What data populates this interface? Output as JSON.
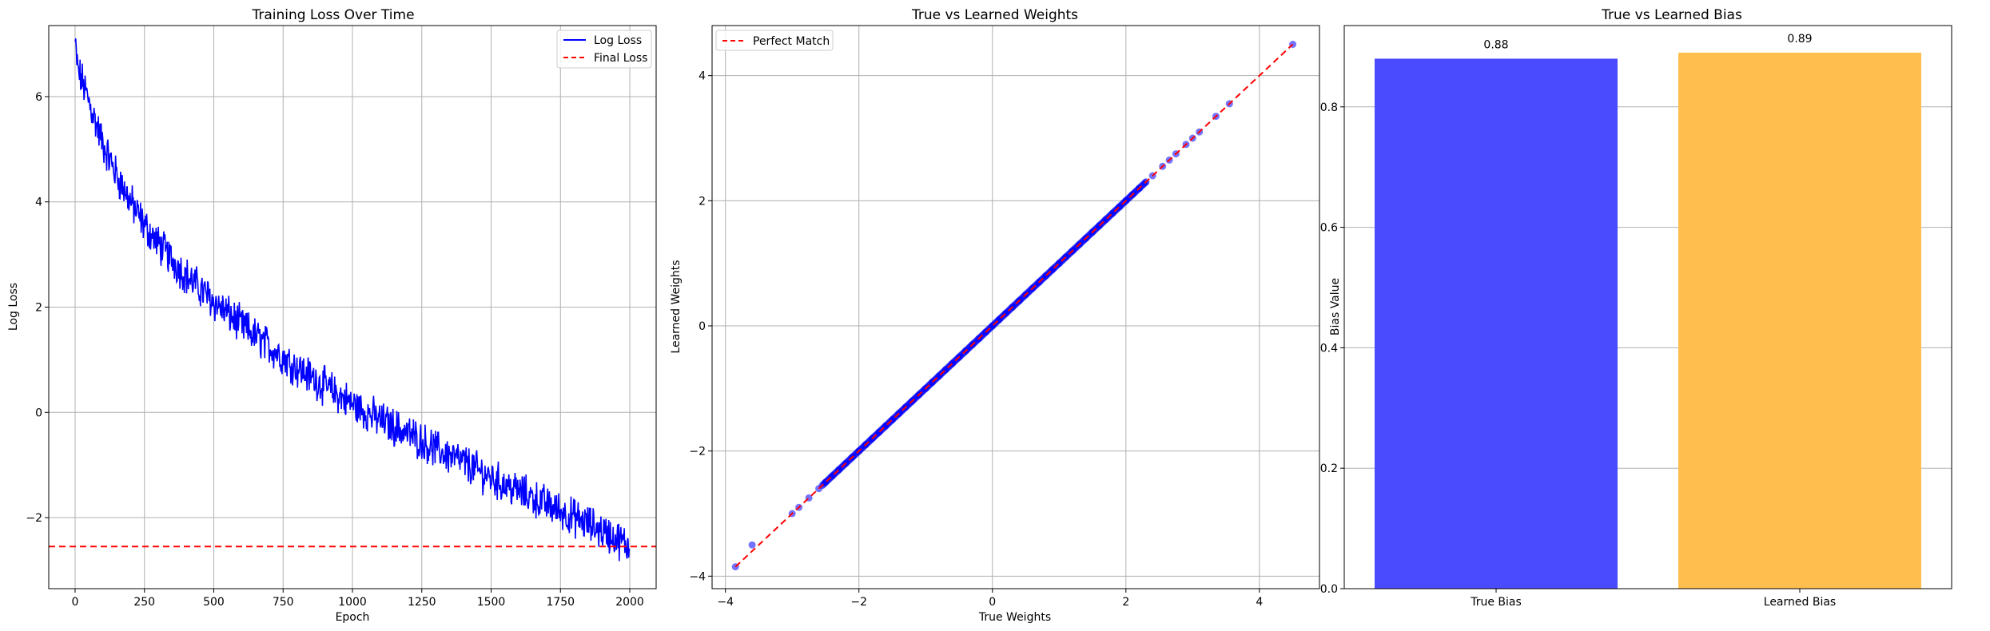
{
  "chart_data": [
    {
      "type": "line",
      "title": "Training Loss Over Time",
      "xlabel": "Epoch",
      "ylabel": "Log Loss",
      "xlim": [
        -95,
        2095
      ],
      "ylim": [
        -3.35,
        7.35
      ],
      "xticks": [
        "0",
        "250",
        "500",
        "750",
        "1000",
        "1250",
        "1500",
        "1750",
        "2000"
      ],
      "xtick_values": [
        0,
        250,
        500,
        750,
        1000,
        1250,
        1500,
        1750,
        2000
      ],
      "yticks": [
        "−2",
        "0",
        "2",
        "4",
        "6"
      ],
      "ytick_values": [
        -2,
        0,
        2,
        4,
        6
      ],
      "grid": true,
      "legend_position": "top-right",
      "series": [
        {
          "name": "Log Loss",
          "color": "#0000ff",
          "x": [
            0,
            10,
            25,
            50,
            75,
            100,
            150,
            200,
            250,
            300,
            400,
            500,
            600,
            700,
            800,
            900,
            1000,
            1100,
            1200,
            1300,
            1400,
            1500,
            1600,
            1700,
            1800,
            1900,
            2000
          ],
          "y": [
            7.0,
            6.5,
            6.3,
            5.9,
            5.5,
            5.1,
            4.5,
            4.0,
            3.55,
            3.2,
            2.6,
            2.1,
            1.65,
            1.25,
            0.85,
            0.5,
            0.15,
            -0.15,
            -0.4,
            -0.7,
            -0.95,
            -1.25,
            -1.5,
            -1.75,
            -2.0,
            -2.25,
            -2.55
          ]
        },
        {
          "name": "Final Loss",
          "color": "#ff0000",
          "style": "dashed",
          "y": -2.55
        }
      ]
    },
    {
      "type": "scatter",
      "title": "True vs Learned Weights",
      "xlabel": "True Weights",
      "ylabel": "Learned Weights",
      "xlim": [
        -4.2,
        4.9
      ],
      "ylim": [
        -4.2,
        4.8
      ],
      "xticks": [
        "−4",
        "−2",
        "0",
        "2",
        "4"
      ],
      "xtick_values": [
        -4,
        -2,
        0,
        2,
        4
      ],
      "yticks": [
        "−4",
        "−2",
        "0",
        "2",
        "4"
      ],
      "ytick_values": [
        -4,
        -2,
        0,
        2,
        4
      ],
      "grid": true,
      "legend_position": "top-left",
      "points_color": "#0000ff",
      "points_x": [
        -3.85,
        -3.6,
        -3.0,
        -2.9,
        -2.75,
        -2.6,
        -2.5,
        -2.4,
        -2.3,
        -2.2,
        -2.1,
        -2.0,
        -1.9,
        -1.8,
        -1.7,
        -1.6,
        -1.5,
        -1.4,
        -1.3,
        -1.2,
        -1.1,
        -1.0,
        -0.9,
        -0.8,
        -0.7,
        -0.6,
        -0.5,
        -0.4,
        -0.3,
        -0.2,
        -0.1,
        0.0,
        0.1,
        0.2,
        0.3,
        0.4,
        0.5,
        0.6,
        0.7,
        0.8,
        0.9,
        1.0,
        1.1,
        1.2,
        1.3,
        1.4,
        1.5,
        1.6,
        1.7,
        1.8,
        1.9,
        2.0,
        2.1,
        2.2,
        2.3,
        2.4,
        2.55,
        2.65,
        2.75,
        2.9,
        3.0,
        3.1,
        3.35,
        3.55,
        4.5
      ],
      "points_y": [
        -3.85,
        -3.5,
        -3.0,
        -2.9,
        -2.75,
        -2.6,
        -2.5,
        -2.4,
        -2.3,
        -2.2,
        -2.1,
        -2.0,
        -1.9,
        -1.8,
        -1.7,
        -1.6,
        -1.5,
        -1.4,
        -1.3,
        -1.2,
        -1.1,
        -1.0,
        -0.9,
        -0.8,
        -0.7,
        -0.6,
        -0.5,
        -0.4,
        -0.3,
        -0.2,
        -0.1,
        0.0,
        0.1,
        0.2,
        0.3,
        0.4,
        0.5,
        0.6,
        0.7,
        0.8,
        0.9,
        1.0,
        1.1,
        1.2,
        1.3,
        1.4,
        1.5,
        1.6,
        1.7,
        1.8,
        1.9,
        2.0,
        2.1,
        2.2,
        2.3,
        2.4,
        2.55,
        2.65,
        2.75,
        2.9,
        3.0,
        3.1,
        3.35,
        3.55,
        4.5
      ],
      "series": [
        {
          "name": "Perfect Match",
          "color": "#ff0000",
          "style": "dashed",
          "x": [
            -3.85,
            4.5
          ],
          "y": [
            -3.85,
            4.5
          ]
        }
      ]
    },
    {
      "type": "bar",
      "title": "True vs Learned Bias",
      "xlabel": "",
      "ylabel": "Bias Value",
      "categories": [
        "True Bias",
        "Learned Bias"
      ],
      "values": [
        0.88,
        0.89
      ],
      "value_labels": [
        "0.88",
        "0.89"
      ],
      "colors": [
        "#4a4aff",
        "#ffbe4d"
      ],
      "ylim": [
        0,
        0.935
      ],
      "yticks": [
        "0.0",
        "0.2",
        "0.4",
        "0.6",
        "0.8"
      ],
      "ytick_values": [
        0,
        0.2,
        0.4,
        0.6,
        0.8
      ],
      "grid": true
    }
  ]
}
